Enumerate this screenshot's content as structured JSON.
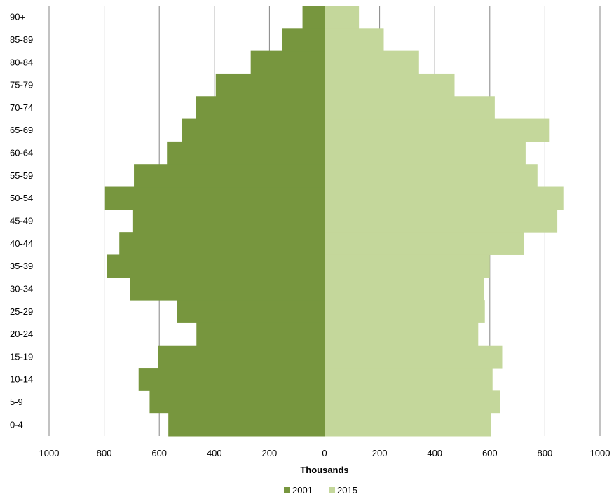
{
  "chart_data": {
    "type": "bar",
    "orientation": "horizontal-diverging",
    "categories": [
      "0-4",
      "5-9",
      "10-14",
      "15-19",
      "20-24",
      "25-29",
      "30-34",
      "35-39",
      "40-44",
      "45-49",
      "50-54",
      "55-59",
      "60-64",
      "65-69",
      "70-74",
      "75-79",
      "80-84",
      "85-89",
      "90+"
    ],
    "series": [
      {
        "name": "2001",
        "side": "left",
        "color": "#77963e",
        "values": [
          567,
          635,
          675,
          605,
          465,
          535,
          705,
          790,
          745,
          695,
          797,
          692,
          572,
          518,
          467,
          395,
          268,
          155,
          80
        ]
      },
      {
        "name": "2015",
        "side": "right",
        "color": "#c4d79b",
        "values": [
          605,
          638,
          610,
          645,
          558,
          582,
          580,
          600,
          725,
          845,
          867,
          773,
          730,
          815,
          618,
          472,
          343,
          215,
          125
        ]
      }
    ],
    "xlabel": "Thousands",
    "xlim": [
      -1000,
      1000
    ],
    "x_ticks": [
      -1000,
      -800,
      -600,
      -400,
      -200,
      0,
      200,
      400,
      600,
      800,
      1000
    ],
    "x_tick_labels": [
      "1000",
      "800",
      "600",
      "400",
      "200",
      "0",
      "200",
      "400",
      "600",
      "800",
      "1000"
    ],
    "grid": "vertical",
    "grid_color": "#868686",
    "legend_position": "bottom"
  }
}
